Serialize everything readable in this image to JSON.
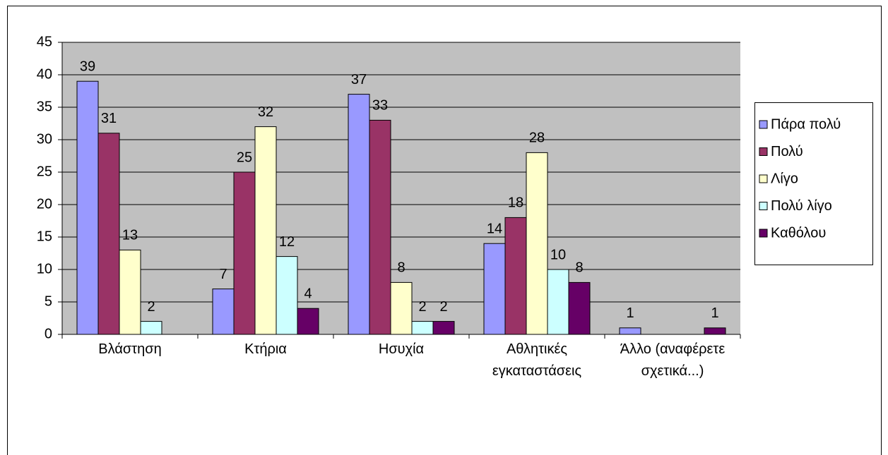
{
  "chart_data": {
    "type": "bar",
    "categories": [
      "Βλάστηση",
      "Κτήρια",
      "Ησυχία",
      "Αθλητικές εγκαταστάσεις",
      "Άλλο (αναφέρετε σχετικά...)"
    ],
    "series": [
      {
        "name": "Πάρα πολύ",
        "color": "#9999ff",
        "values": [
          39,
          7,
          37,
          14,
          1
        ]
      },
      {
        "name": "Πολύ",
        "color": "#993366",
        "values": [
          31,
          25,
          33,
          18,
          null
        ]
      },
      {
        "name": "Λίγο",
        "color": "#ffffcc",
        "values": [
          13,
          32,
          8,
          28,
          null
        ]
      },
      {
        "name": "Πολύ λίγο",
        "color": "#ccffff",
        "values": [
          2,
          12,
          2,
          10,
          null
        ]
      },
      {
        "name": "Καθόλου",
        "color": "#660066",
        "values": [
          null,
          4,
          2,
          8,
          1
        ]
      }
    ],
    "ylim": [
      0,
      45
    ],
    "yticks": [
      0,
      5,
      10,
      15,
      20,
      25,
      30,
      35,
      40,
      45
    ],
    "grid": true,
    "legend": "right"
  }
}
